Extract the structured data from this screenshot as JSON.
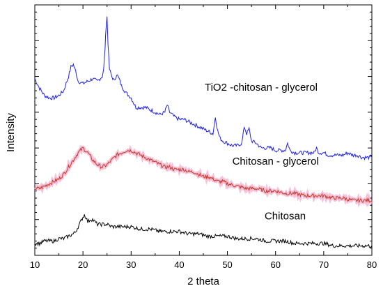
{
  "chart_data": {
    "type": "line",
    "title": "",
    "xlabel": "2 theta",
    "ylabel": "Intensity",
    "xlim": [
      10,
      80
    ],
    "xticks": [
      10,
      20,
      30,
      40,
      50,
      60,
      70,
      80
    ],
    "yticks_labeled": false,
    "grid": false,
    "legend": "none (inline text labels next to each curve)",
    "series": [
      {
        "name": "TiO2 -chitosan - glycerol",
        "color": "#1f1fe6",
        "x": [
          10,
          11,
          12,
          13,
          14,
          15,
          16,
          17,
          17.5,
          18,
          18.5,
          19,
          20,
          21,
          22,
          23,
          23.5,
          24,
          24.3,
          24.6,
          24.8,
          25,
          25.2,
          25.5,
          26,
          26.5,
          27,
          27.5,
          28,
          29,
          30,
          31,
          32,
          33,
          34,
          35,
          36,
          37,
          37.5,
          38,
          39,
          40,
          41,
          42,
          43,
          44,
          45,
          46,
          47,
          47.5,
          48,
          48.5,
          49,
          50,
          51,
          52,
          53,
          53.5,
          54,
          54.5,
          55,
          56,
          57,
          58,
          59,
          60,
          61,
          62,
          62.5,
          63,
          64,
          65,
          66,
          67,
          68,
          68.5,
          69,
          70,
          71,
          72,
          73,
          74,
          75,
          76,
          77,
          78,
          79,
          80
        ],
        "y": [
          74,
          70,
          67,
          66,
          66,
          67,
          69,
          75,
          79,
          80,
          77,
          73,
          72,
          73,
          74,
          73,
          74,
          75,
          78,
          87,
          96,
          100,
          89,
          78,
          75,
          73,
          76,
          74,
          71,
          68,
          66,
          62,
          62,
          62,
          61,
          60,
          59,
          60,
          63,
          60,
          58,
          57,
          57,
          56,
          55,
          54,
          53,
          52,
          51,
          58,
          52,
          49,
          48,
          47,
          46,
          46,
          47,
          54,
          51,
          53,
          48,
          47,
          45,
          45,
          45,
          44,
          44,
          44,
          47,
          44,
          43,
          43,
          43,
          43,
          43,
          45,
          43,
          43,
          42,
          42,
          42,
          42,
          43,
          42,
          42,
          41,
          41,
          41
        ]
      },
      {
        "name": "Chitosan - glycerol",
        "color": "#c0392b",
        "x": [
          10,
          11,
          12,
          13,
          14,
          15,
          16,
          17,
          18,
          19,
          19.5,
          20,
          20.5,
          21,
          22,
          23,
          24,
          25,
          26,
          27,
          28,
          29,
          30,
          31,
          32,
          33,
          34,
          35,
          36,
          37,
          38,
          39,
          40,
          41,
          42,
          43,
          44,
          45,
          46,
          47,
          48,
          49,
          50,
          52,
          54,
          56,
          58,
          60,
          62,
          64,
          66,
          68,
          70,
          72,
          74,
          76,
          78,
          80
        ],
        "y": [
          28,
          28,
          29,
          30,
          31,
          32,
          34,
          37,
          40,
          43,
          44,
          45,
          44,
          43,
          40,
          38,
          37,
          38,
          40,
          42,
          43,
          44,
          44,
          43,
          42,
          41,
          40,
          39,
          38,
          37,
          37,
          36,
          36,
          36,
          35,
          35,
          34,
          33,
          33,
          32,
          31,
          31,
          30,
          29,
          28,
          28,
          27,
          27,
          26,
          26,
          25,
          25,
          25,
          24,
          24,
          23,
          23,
          23
        ]
      },
      {
        "name": "Chitosan",
        "color": "#000000",
        "x": [
          10,
          11,
          12,
          13,
          14,
          15,
          16,
          17,
          18,
          18.5,
          19,
          19.5,
          20,
          20.3,
          20.6,
          21,
          21.5,
          22,
          22.5,
          23,
          24,
          25,
          26,
          27,
          28,
          29,
          30,
          32,
          34,
          36,
          38,
          40,
          42,
          44,
          46,
          48,
          50,
          52,
          54,
          56,
          58,
          60,
          62,
          64,
          66,
          68,
          70,
          72,
          74,
          76,
          78,
          80
        ],
        "y": [
          5,
          5,
          6,
          6,
          6,
          7,
          7,
          8,
          9,
          10,
          12,
          14,
          16,
          17,
          16,
          14,
          15,
          15,
          14,
          13,
          13,
          13,
          12,
          12,
          12,
          12,
          12,
          11,
          11,
          10,
          10,
          10,
          9,
          9,
          8,
          8,
          8,
          7,
          7,
          7,
          6,
          6,
          6,
          5,
          5,
          5,
          5,
          4,
          4,
          4,
          4,
          4
        ]
      }
    ],
    "annotations": [
      {
        "text": "TiO2 -chitosan - glycerol",
        "x": 57,
        "y": 69
      },
      {
        "text": "Chitosan - glycerol",
        "x": 60,
        "y": 38
      },
      {
        "text": "Chitosan",
        "x": 62,
        "y": 15
      }
    ]
  }
}
